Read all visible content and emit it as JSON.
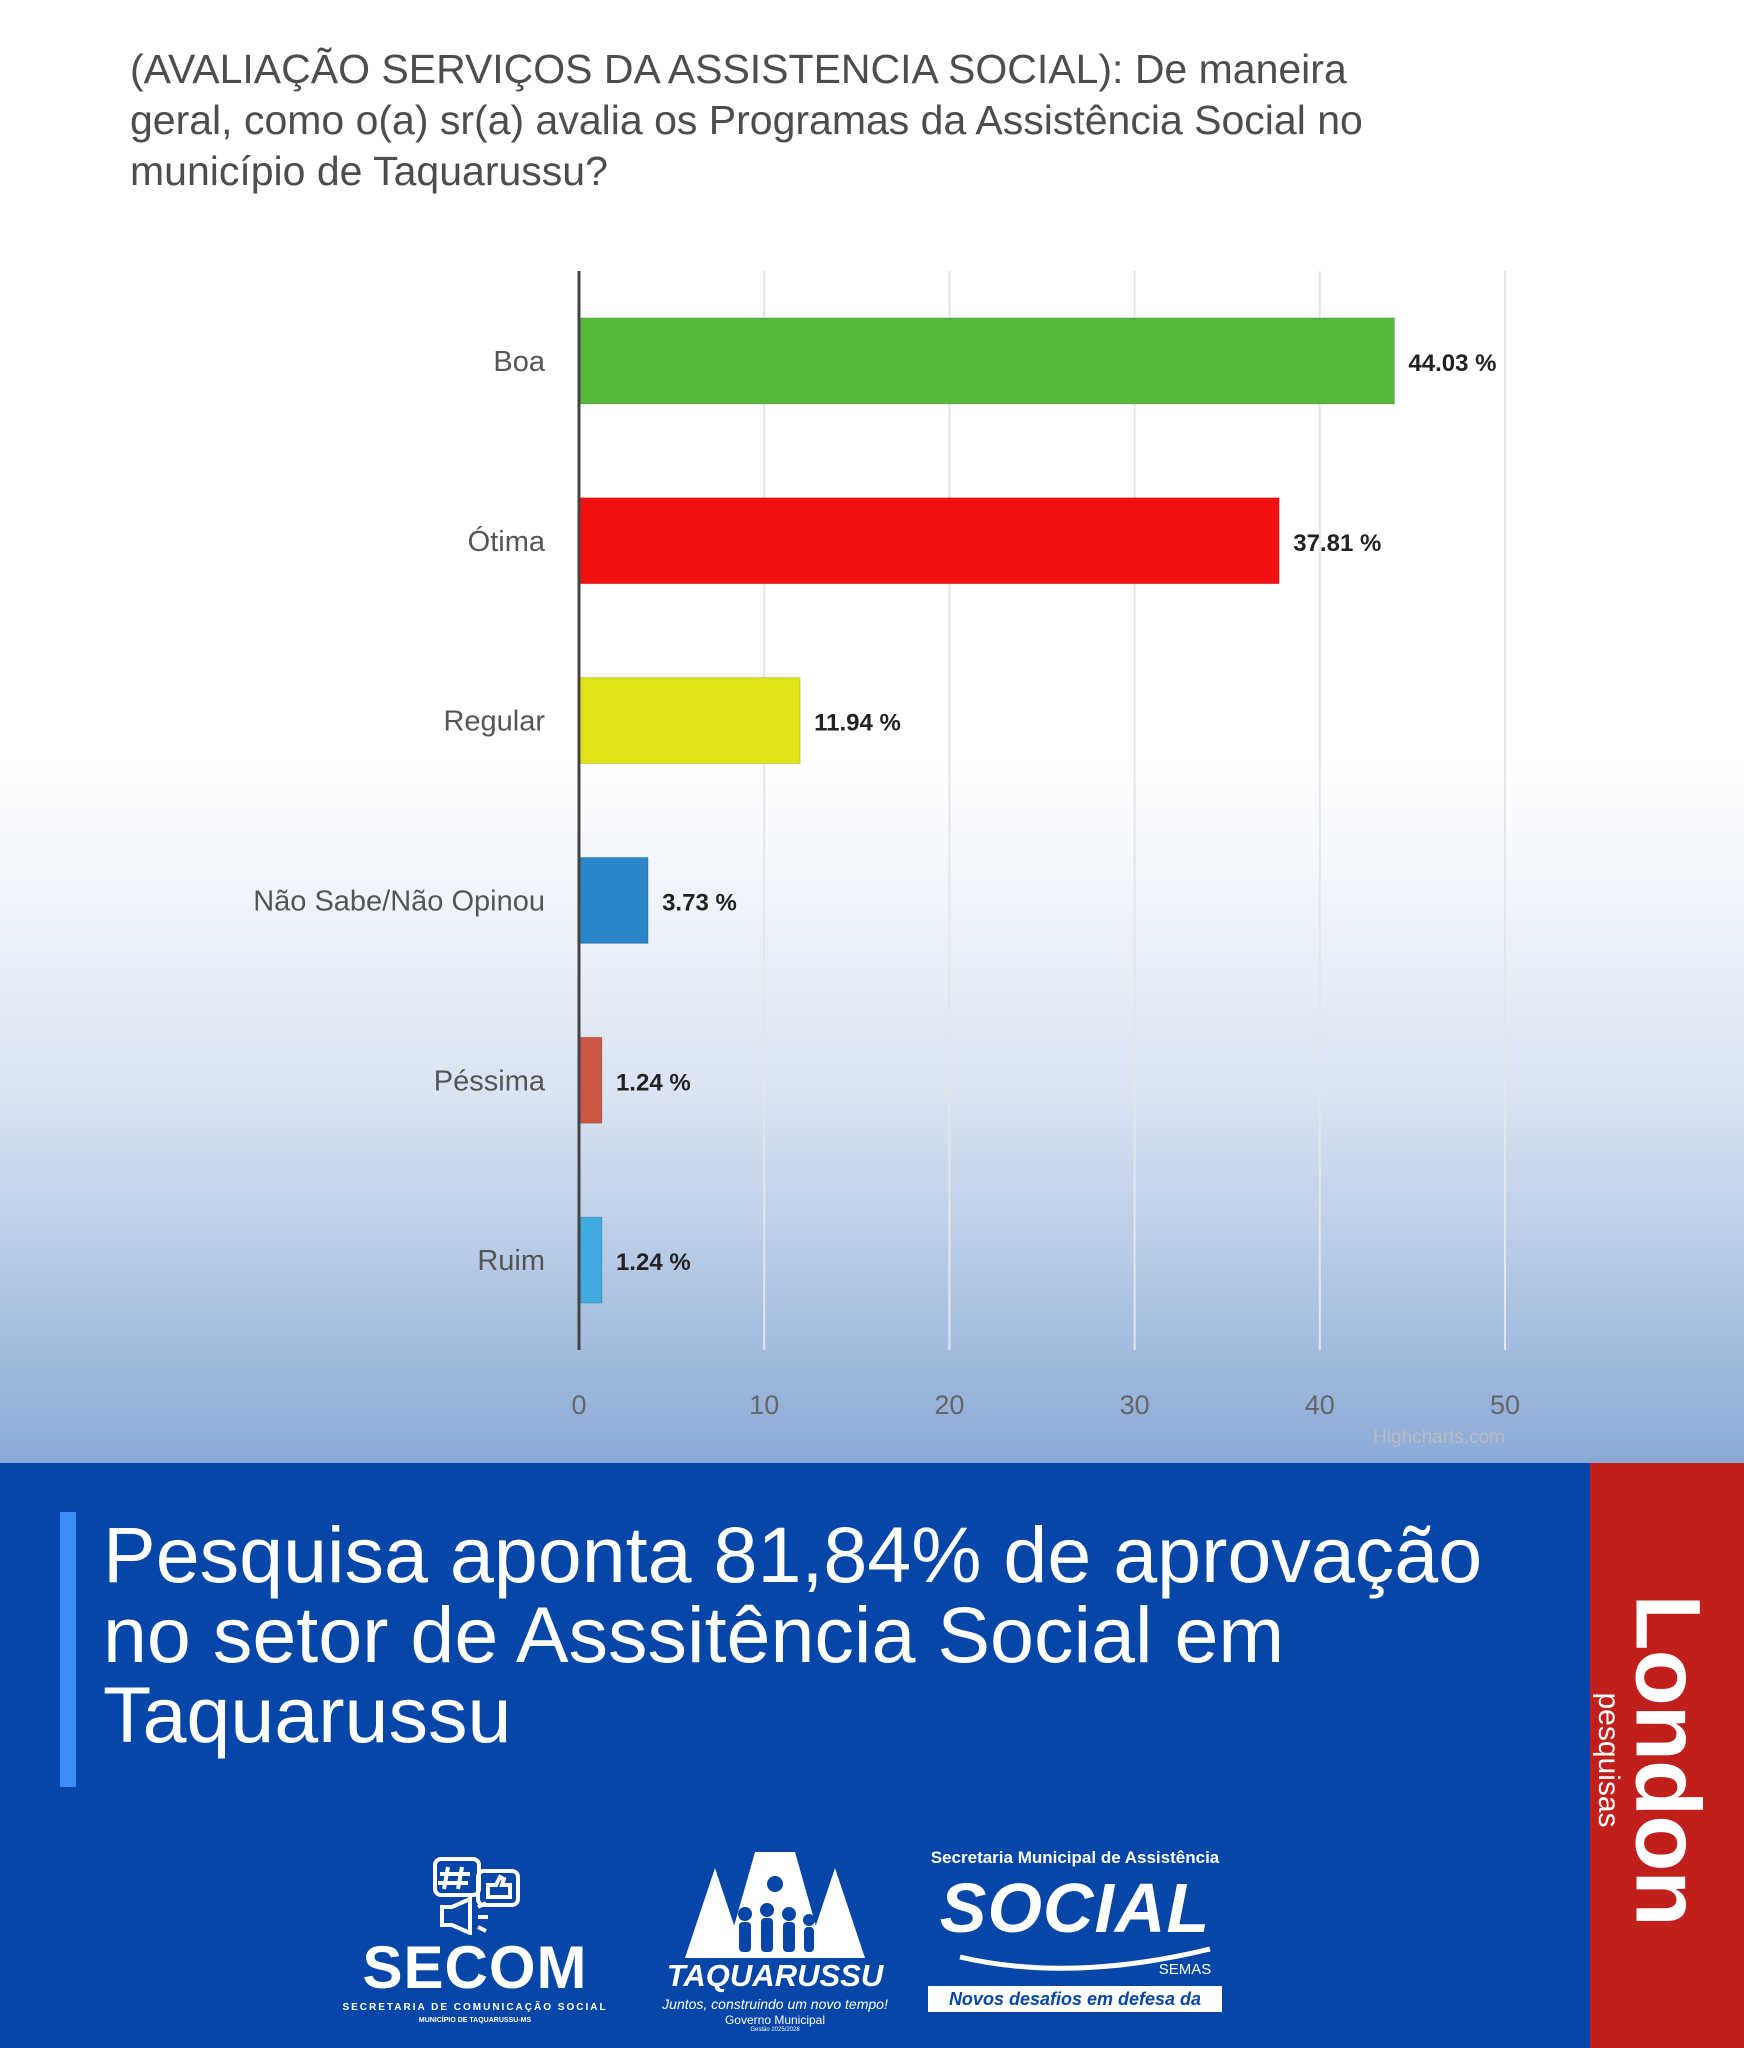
{
  "question": "(AVALIAÇÃO SERVIÇOS DA ASSISTENCIA SOCIAL): De maneira geral, como o(a) sr(a) avalia os Programas da Assistência Social no município de Taquarussu?",
  "chart_data": {
    "type": "bar",
    "orientation": "horizontal",
    "categories": [
      "Boa",
      "Ótima",
      "Regular",
      "Não Sabe/Não Opinou",
      "Péssima",
      "Ruim"
    ],
    "values": [
      44.03,
      37.81,
      11.94,
      3.73,
      1.24,
      1.24
    ],
    "value_labels": [
      "44.03 %",
      "37.81 %",
      "11.94 %",
      "3.73 %",
      "1.24 %",
      "1.24 %"
    ],
    "colors": [
      "#54b93a",
      "#f21111",
      "#dfe317",
      "#2a86c6",
      "#cc5743",
      "#41aade"
    ],
    "xlim": [
      0,
      50
    ],
    "xticks": [
      0,
      10,
      20,
      30,
      40,
      50
    ],
    "grid": true,
    "credit": "Highcharts.com"
  },
  "headline": "Pesquisa aponta 81,84% de aprovação no setor de Asssitência Social em Taquarussu",
  "brand": {
    "name": "London",
    "tagline": "pesquisas",
    "color": "#c11f1c"
  },
  "band_color": "#0646a8",
  "logos": {
    "secom": {
      "name": "SECOM",
      "subtitle": "SECRETARIA DE COMUNICAÇÃO SOCIAL",
      "city": "MUNICÍPIO DE TAQUARUSSU-MS",
      "icons": [
        "hashtag-icon",
        "thumbs-up-icon",
        "megaphone-icon"
      ]
    },
    "taquarussu": {
      "name": "TAQUARUSSU",
      "slogan": "Juntos, construindo um novo tempo!",
      "government": "Governo Municipal",
      "term": "Gestão 2025/2028"
    },
    "social": {
      "department": "Secretaria Municipal de Assistência",
      "name": "SOCIAL",
      "acronym": "SEMAS",
      "motto": "Novos desafios em defesa da vida!"
    }
  }
}
